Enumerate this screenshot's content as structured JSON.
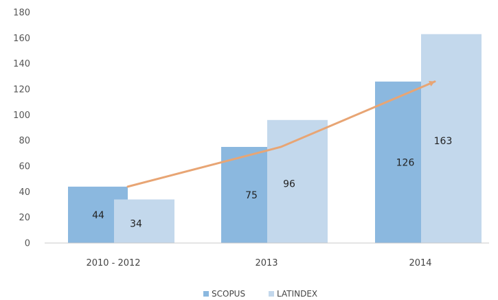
{
  "chart_data": {
    "type": "bar",
    "categories": [
      "2010 - 2012",
      "2013",
      "2014"
    ],
    "series": [
      {
        "name": "SCOPUS",
        "values": [
          44,
          75,
          126
        ],
        "color": "#8bb8df"
      },
      {
        "name": "LATINDEX",
        "values": [
          34,
          96,
          163
        ],
        "color": "#c3d8ec"
      }
    ],
    "trend_line": {
      "series": "SCOPUS",
      "color": "#e8a574"
    },
    "ylim": [
      0,
      180
    ],
    "yticks": [
      0,
      20,
      40,
      60,
      80,
      100,
      120,
      140,
      160,
      180
    ],
    "grid": false,
    "legend_position": "bottom-center",
    "title": "",
    "xlabel": "",
    "ylabel": ""
  }
}
